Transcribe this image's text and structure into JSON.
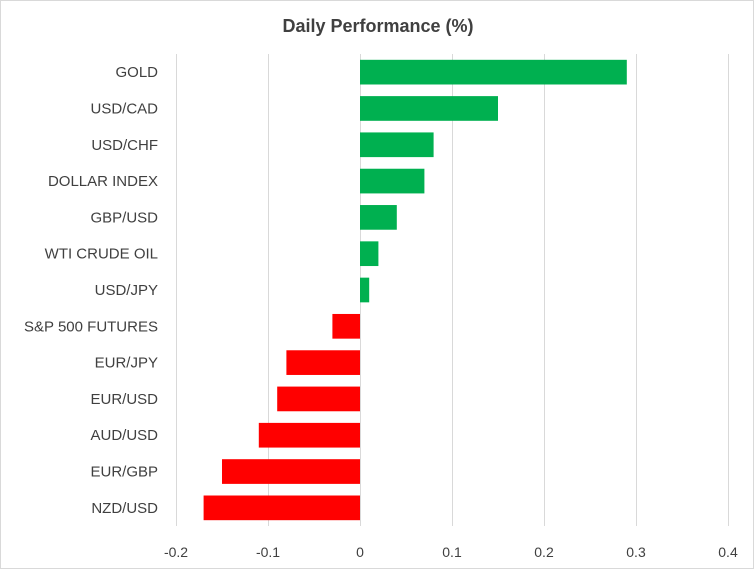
{
  "chart_data": {
    "type": "bar",
    "orientation": "horizontal",
    "title": "Daily Performance (%)",
    "xlabel": "",
    "ylabel": "",
    "xlim": [
      -0.2,
      0.4
    ],
    "ticks": [
      "-0.2",
      "-0.1",
      "0",
      "0.1",
      "0.2",
      "0.3",
      "0.4"
    ],
    "tick_values": [
      -0.2,
      -0.1,
      0,
      0.1,
      0.2,
      0.3,
      0.4
    ],
    "grid": true,
    "legend": "none",
    "positive_color": "#00B050",
    "negative_color": "#FF0000",
    "categories": [
      "GOLD",
      "USD/CAD",
      "USD/CHF",
      "DOLLAR INDEX",
      "GBP/USD",
      "WTI CRUDE OIL",
      "USD/JPY",
      "S&P 500 FUTURES",
      "EUR/JPY",
      "EUR/USD",
      "AUD/USD",
      "EUR/GBP",
      "NZD/USD"
    ],
    "values": [
      0.29,
      0.15,
      0.08,
      0.07,
      0.04,
      0.02,
      0.01,
      -0.03,
      -0.08,
      -0.09,
      -0.11,
      -0.15,
      -0.17
    ]
  }
}
